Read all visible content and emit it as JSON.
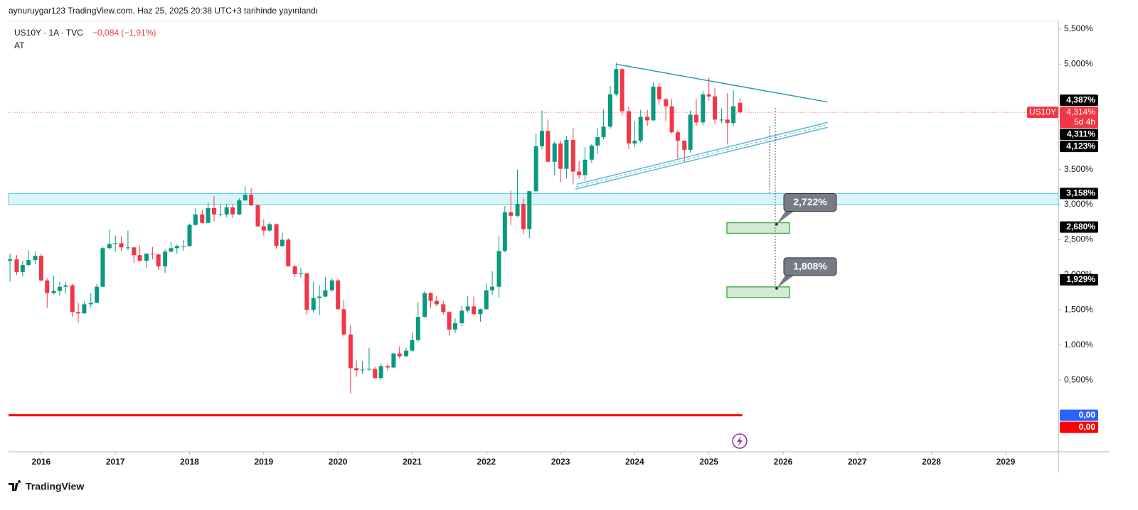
{
  "header": "aynuruygar123 TradingView.com, Haz 25, 2025 20:38 UTC+3 tarihinde yayınlandı",
  "chart_data": {
    "type": "candlestick",
    "symbol": "US10Y · 1A · TVC",
    "change": "−0,084 (−1,91%)",
    "session": "AT",
    "up_color": "#089981",
    "down_color": "#f23645",
    "xlim": [
      2015.56,
      2029.71
    ],
    "xticks": [
      2016,
      2017,
      2018,
      2019,
      2020,
      2021,
      2022,
      2023,
      2024,
      2025,
      2026,
      2027,
      2028,
      2029
    ],
    "ylim": [
      -0.52,
      5.61
    ],
    "yticks": [
      {
        "value": 5.5,
        "label": "5,500%"
      },
      {
        "value": 5.0,
        "label": "5,000%"
      },
      {
        "value": 3.5,
        "label": "3,500%"
      },
      {
        "value": 3.0,
        "label": "3,000%"
      },
      {
        "value": 2.5,
        "label": "2,500%"
      },
      {
        "value": 2.0,
        "label": "2,000%"
      },
      {
        "value": 1.5,
        "label": "1,500%"
      },
      {
        "value": 1.0,
        "label": "1,000%"
      },
      {
        "value": 0.5,
        "label": "0,500%"
      }
    ],
    "x": [
      2015.58,
      2015.67,
      2015.75,
      2015.83,
      2015.92,
      2016.0,
      2016.08,
      2016.17,
      2016.25,
      2016.33,
      2016.42,
      2016.5,
      2016.58,
      2016.67,
      2016.75,
      2016.83,
      2016.92,
      2017.0,
      2017.08,
      2017.17,
      2017.25,
      2017.33,
      2017.42,
      2017.5,
      2017.58,
      2017.67,
      2017.75,
      2017.83,
      2017.92,
      2018.0,
      2018.08,
      2018.17,
      2018.25,
      2018.33,
      2018.42,
      2018.5,
      2018.58,
      2018.67,
      2018.75,
      2018.83,
      2018.92,
      2019.0,
      2019.08,
      2019.17,
      2019.25,
      2019.33,
      2019.42,
      2019.5,
      2019.58,
      2019.67,
      2019.75,
      2019.83,
      2019.92,
      2020.0,
      2020.08,
      2020.17,
      2020.25,
      2020.33,
      2020.42,
      2020.5,
      2020.58,
      2020.67,
      2020.75,
      2020.83,
      2020.92,
      2021.0,
      2021.08,
      2021.17,
      2021.25,
      2021.33,
      2021.42,
      2021.5,
      2021.58,
      2021.67,
      2021.75,
      2021.83,
      2021.92,
      2022.0,
      2022.08,
      2022.17,
      2022.25,
      2022.33,
      2022.42,
      2022.5,
      2022.58,
      2022.67,
      2022.75,
      2022.83,
      2022.92,
      2023.0,
      2023.08,
      2023.17,
      2023.25,
      2023.33,
      2023.42,
      2023.5,
      2023.58,
      2023.67,
      2023.75,
      2023.83,
      2023.92,
      2024.0,
      2024.08,
      2024.17,
      2024.25,
      2024.33,
      2024.42,
      2024.5,
      2024.58,
      2024.67,
      2024.75,
      2024.83,
      2024.92,
      2025.0,
      2025.08,
      2025.17,
      2025.25,
      2025.33,
      2025.42
    ],
    "ohlc": [
      [
        2.2,
        2.3,
        1.9,
        2.22
      ],
      [
        2.22,
        2.28,
        2.0,
        2.04
      ],
      [
        2.04,
        2.2,
        1.98,
        2.14
      ],
      [
        2.14,
        2.35,
        2.12,
        2.21
      ],
      [
        2.21,
        2.33,
        2.15,
        2.27
      ],
      [
        2.27,
        2.3,
        1.9,
        1.92
      ],
      [
        1.92,
        1.95,
        1.53,
        1.74
      ],
      [
        1.74,
        1.99,
        1.72,
        1.77
      ],
      [
        1.77,
        1.9,
        1.7,
        1.83
      ],
      [
        1.83,
        1.9,
        1.73,
        1.85
      ],
      [
        1.85,
        1.87,
        1.4,
        1.47
      ],
      [
        1.47,
        1.6,
        1.32,
        1.45
      ],
      [
        1.45,
        1.62,
        1.45,
        1.58
      ],
      [
        1.58,
        1.74,
        1.53,
        1.6
      ],
      [
        1.6,
        1.87,
        1.6,
        1.83
      ],
      [
        1.83,
        2.4,
        1.83,
        2.38
      ],
      [
        2.38,
        2.64,
        2.36,
        2.44
      ],
      [
        2.44,
        2.56,
        2.33,
        2.45
      ],
      [
        2.45,
        2.55,
        2.34,
        2.39
      ],
      [
        2.39,
        2.63,
        2.35,
        2.39
      ],
      [
        2.39,
        2.4,
        2.17,
        2.28
      ],
      [
        2.28,
        2.42,
        2.19,
        2.2
      ],
      [
        2.2,
        2.31,
        2.1,
        2.3
      ],
      [
        2.3,
        2.4,
        2.22,
        2.29
      ],
      [
        2.29,
        2.3,
        2.07,
        2.12
      ],
      [
        2.12,
        2.36,
        2.03,
        2.33
      ],
      [
        2.33,
        2.47,
        2.32,
        2.38
      ],
      [
        2.38,
        2.43,
        2.3,
        2.41
      ],
      [
        2.41,
        2.5,
        2.34,
        2.41
      ],
      [
        2.41,
        2.73,
        2.4,
        2.71
      ],
      [
        2.71,
        2.95,
        2.7,
        2.86
      ],
      [
        2.86,
        2.93,
        2.73,
        2.74
      ],
      [
        2.74,
        3.03,
        2.73,
        2.95
      ],
      [
        2.95,
        3.12,
        2.76,
        2.86
      ],
      [
        2.86,
        3.0,
        2.83,
        2.86
      ],
      [
        2.86,
        3.01,
        2.82,
        2.96
      ],
      [
        2.96,
        3.0,
        2.81,
        2.86
      ],
      [
        2.86,
        3.09,
        2.85,
        3.06
      ],
      [
        3.06,
        3.26,
        3.05,
        3.14
      ],
      [
        3.14,
        3.24,
        2.98,
        2.99
      ],
      [
        2.99,
        3.0,
        2.68,
        2.69
      ],
      [
        2.69,
        2.79,
        2.56,
        2.63
      ],
      [
        2.63,
        2.75,
        2.61,
        2.72
      ],
      [
        2.72,
        2.73,
        2.37,
        2.41
      ],
      [
        2.41,
        2.6,
        2.39,
        2.5
      ],
      [
        2.5,
        2.52,
        2.12,
        2.12
      ],
      [
        2.12,
        2.14,
        1.97,
        2.01
      ],
      [
        2.01,
        2.1,
        1.96,
        2.02
      ],
      [
        2.02,
        2.03,
        1.43,
        1.5
      ],
      [
        1.5,
        1.9,
        1.46,
        1.67
      ],
      [
        1.67,
        1.85,
        1.43,
        1.69
      ],
      [
        1.69,
        1.97,
        1.68,
        1.78
      ],
      [
        1.78,
        1.95,
        1.76,
        1.92
      ],
      [
        1.92,
        1.94,
        1.51,
        1.51
      ],
      [
        1.51,
        1.64,
        1.12,
        1.15
      ],
      [
        1.15,
        1.28,
        0.31,
        0.67
      ],
      [
        0.67,
        0.78,
        0.55,
        0.64
      ],
      [
        0.64,
        0.77,
        0.59,
        0.65
      ],
      [
        0.65,
        0.96,
        0.63,
        0.66
      ],
      [
        0.66,
        0.69,
        0.52,
        0.53
      ],
      [
        0.53,
        0.74,
        0.5,
        0.7
      ],
      [
        0.7,
        0.73,
        0.63,
        0.68
      ],
      [
        0.68,
        0.89,
        0.67,
        0.88
      ],
      [
        0.88,
        0.98,
        0.81,
        0.84
      ],
      [
        0.84,
        0.96,
        0.83,
        0.92
      ],
      [
        0.92,
        1.18,
        0.9,
        1.07
      ],
      [
        1.07,
        1.61,
        1.04,
        1.4
      ],
      [
        1.4,
        1.77,
        1.39,
        1.74
      ],
      [
        1.74,
        1.75,
        1.53,
        1.63
      ],
      [
        1.63,
        1.7,
        1.55,
        1.58
      ],
      [
        1.58,
        1.63,
        1.43,
        1.47
      ],
      [
        1.47,
        1.48,
        1.13,
        1.22
      ],
      [
        1.22,
        1.38,
        1.17,
        1.31
      ],
      [
        1.31,
        1.56,
        1.27,
        1.49
      ],
      [
        1.49,
        1.7,
        1.46,
        1.55
      ],
      [
        1.55,
        1.69,
        1.42,
        1.44
      ],
      [
        1.44,
        1.52,
        1.33,
        1.51
      ],
      [
        1.51,
        1.88,
        1.5,
        1.78
      ],
      [
        1.78,
        2.05,
        1.71,
        1.83
      ],
      [
        1.83,
        2.56,
        1.67,
        2.34
      ],
      [
        2.34,
        2.98,
        2.32,
        2.89
      ],
      [
        2.89,
        3.2,
        2.71,
        2.84
      ],
      [
        2.84,
        3.5,
        2.82,
        3.01
      ],
      [
        3.01,
        3.09,
        2.58,
        2.65
      ],
      [
        2.65,
        3.2,
        2.52,
        3.19
      ],
      [
        3.19,
        4.01,
        3.18,
        3.83
      ],
      [
        3.83,
        4.34,
        3.79,
        4.05
      ],
      [
        4.05,
        4.21,
        3.61,
        3.61
      ],
      [
        3.61,
        3.9,
        3.42,
        3.87
      ],
      [
        3.87,
        3.91,
        3.32,
        3.51
      ],
      [
        3.51,
        3.98,
        3.37,
        3.92
      ],
      [
        3.92,
        4.09,
        3.29,
        3.47
      ],
      [
        3.47,
        3.62,
        3.37,
        3.42
      ],
      [
        3.42,
        3.82,
        3.34,
        3.64
      ],
      [
        3.64,
        3.86,
        3.59,
        3.84
      ],
      [
        3.84,
        4.09,
        3.72,
        3.96
      ],
      [
        3.96,
        4.36,
        3.93,
        4.11
      ],
      [
        4.11,
        4.69,
        4.08,
        4.57
      ],
      [
        4.57,
        5.02,
        4.54,
        4.93
      ],
      [
        4.93,
        4.95,
        4.27,
        4.33
      ],
      [
        4.33,
        4.4,
        3.79,
        3.87
      ],
      [
        3.87,
        4.19,
        3.82,
        3.91
      ],
      [
        3.91,
        4.35,
        3.88,
        4.25
      ],
      [
        4.25,
        4.35,
        4.12,
        4.2
      ],
      [
        4.2,
        4.74,
        4.19,
        4.68
      ],
      [
        4.68,
        4.73,
        4.42,
        4.5
      ],
      [
        4.5,
        4.52,
        4.19,
        4.4
      ],
      [
        4.4,
        4.5,
        4.01,
        4.03
      ],
      [
        4.03,
        4.06,
        3.66,
        3.91
      ],
      [
        3.91,
        3.91,
        3.6,
        3.78
      ],
      [
        3.78,
        4.34,
        3.74,
        4.28
      ],
      [
        4.28,
        4.5,
        4.12,
        4.17
      ],
      [
        4.17,
        4.62,
        4.13,
        4.57
      ],
      [
        4.57,
        4.81,
        4.48,
        4.54
      ],
      [
        4.54,
        4.66,
        4.15,
        4.21
      ],
      [
        4.21,
        4.37,
        4.16,
        4.21
      ],
      [
        4.21,
        4.59,
        3.86,
        4.16
      ],
      [
        4.16,
        4.63,
        4.12,
        4.4
      ],
      [
        4.45,
        4.52,
        4.3,
        4.314
      ]
    ],
    "current": {
      "value": 4.314,
      "label": "4,314%",
      "symbol": "US10Y",
      "countdown": "5d 4h",
      "color": "#f23645"
    },
    "price_tags": [
      {
        "value": 4.387,
        "label": "4,387%",
        "color": "#000000"
      },
      {
        "value": 4.311,
        "label": "4,311%",
        "color": "#000000"
      },
      {
        "value": 4.123,
        "label": "4,123%",
        "color": "#000000"
      },
      {
        "value": 3.158,
        "label": "3,158%",
        "color": "#000000"
      },
      {
        "value": 2.68,
        "label": "2,680%",
        "color": "#000000"
      },
      {
        "value": 1.929,
        "label": "1,929%",
        "color": "#000000"
      },
      {
        "value": 0,
        "label": "0,00",
        "color": "#2962ff"
      },
      {
        "value": 0,
        "label": "0,00",
        "color": "#ff0000"
      }
    ],
    "zone": [
      3.0,
      3.158
    ],
    "trend_lines": [
      {
        "x": [
          2023.75,
          2026.6
        ],
        "y": [
          5.0,
          4.46
        ],
        "color": "#2a9bb0"
      },
      {
        "x": [
          2023.2,
          2026.6
        ],
        "y": [
          3.22,
          4.1
        ],
        "color": "#5fb8d8"
      },
      {
        "x": [
          2023.22,
          2026.6
        ],
        "y": [
          3.29,
          4.17
        ],
        "color": "#5fb8d8"
      }
    ],
    "zero_line": {
      "x": [
        2015.56,
        2025.45
      ],
      "y": [
        0,
        0
      ],
      "color": "#ff0000"
    },
    "targets": [
      {
        "value": 2.722,
        "label": "2,722%"
      },
      {
        "value": 1.808,
        "label": "1,808%"
      }
    ]
  },
  "footer": "TradingView"
}
